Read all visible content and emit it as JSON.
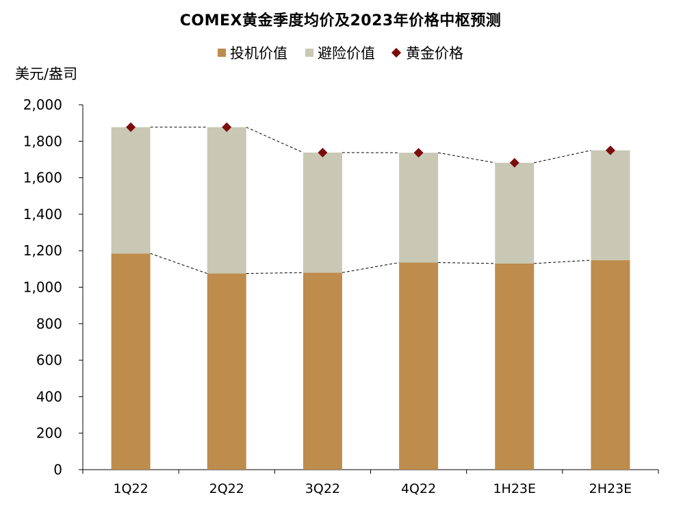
{
  "chart_data": {
    "type": "bar",
    "title": "COMEX黄金季度均价及2023年价格中枢预测",
    "ylabel": "美元/盎司",
    "categories": [
      "1Q22",
      "2Q22",
      "3Q22",
      "4Q22",
      "1H23E",
      "2H23E"
    ],
    "series": [
      {
        "name": "投机价值",
        "kind": "stacked-bar",
        "color": "#BE8C4C",
        "values": [
          1185,
          1075,
          1080,
          1135,
          1130,
          1148
        ]
      },
      {
        "name": "避险价值",
        "kind": "stacked-bar",
        "color": "#C8C8B4",
        "values": [
          692,
          802,
          658,
          602,
          552,
          602
        ]
      },
      {
        "name": "黄金价格",
        "kind": "marker",
        "color": "#7B0C0C",
        "values": [
          1877,
          1877,
          1738,
          1737,
          1682,
          1750
        ]
      }
    ],
    "ylim": [
      0,
      2000
    ],
    "yticks": [
      0,
      200,
      400,
      600,
      800,
      1000,
      1200,
      1400,
      1600,
      1800,
      2000
    ],
    "ytick_labels": [
      "0",
      "200",
      "400",
      "600",
      "800",
      "1,000",
      "1,200",
      "1,400",
      "1,600",
      "1,800",
      "2,000"
    ],
    "legend_position": "top-center",
    "grid": false
  }
}
